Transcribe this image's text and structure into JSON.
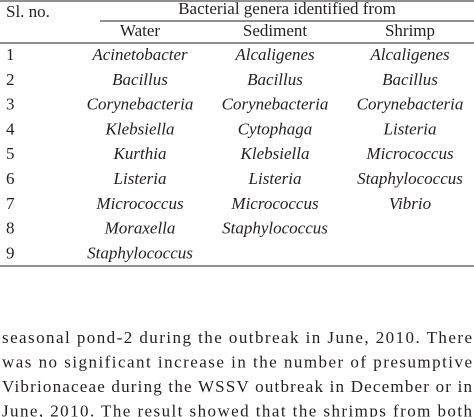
{
  "table": {
    "header": {
      "sl_no": "Sl. no.",
      "group": "Bacterial genera identified from",
      "columns": [
        "Water",
        "Sediment",
        "Shrimp"
      ]
    },
    "rows": [
      [
        "1",
        "Acinetobacter",
        "Alcaligenes",
        "Alcaligenes"
      ],
      [
        "2",
        "Bacillus",
        "Bacillus",
        "Bacillus"
      ],
      [
        "3",
        "Corynebacteria",
        "Corynebacteria",
        "Corynebacteria"
      ],
      [
        "4",
        "Klebsiella",
        "Cytophaga",
        "Listeria"
      ],
      [
        "5",
        "Kurthia",
        "Klebsiella",
        "Micrococcus"
      ],
      [
        "6",
        "Listeria",
        "Listeria",
        "Staphylococcus"
      ],
      [
        "7",
        "Micrococcus",
        "Micrococcus",
        "Vibrio"
      ],
      [
        "8",
        "Moraxella",
        "Staphylococcus"
      ],
      [
        "9",
        "Staphylococcus"
      ]
    ]
  },
  "paragraph": {
    "lines": [
      "seasonal pond-2 during the outbreak in June, 2010. There",
      "was no significant increase in the number of presumptive",
      "Vibrionaceae during the WSSV outbreak in December or in",
      "June, 2010. The result showed that the shrimps from both"
    ]
  }
}
